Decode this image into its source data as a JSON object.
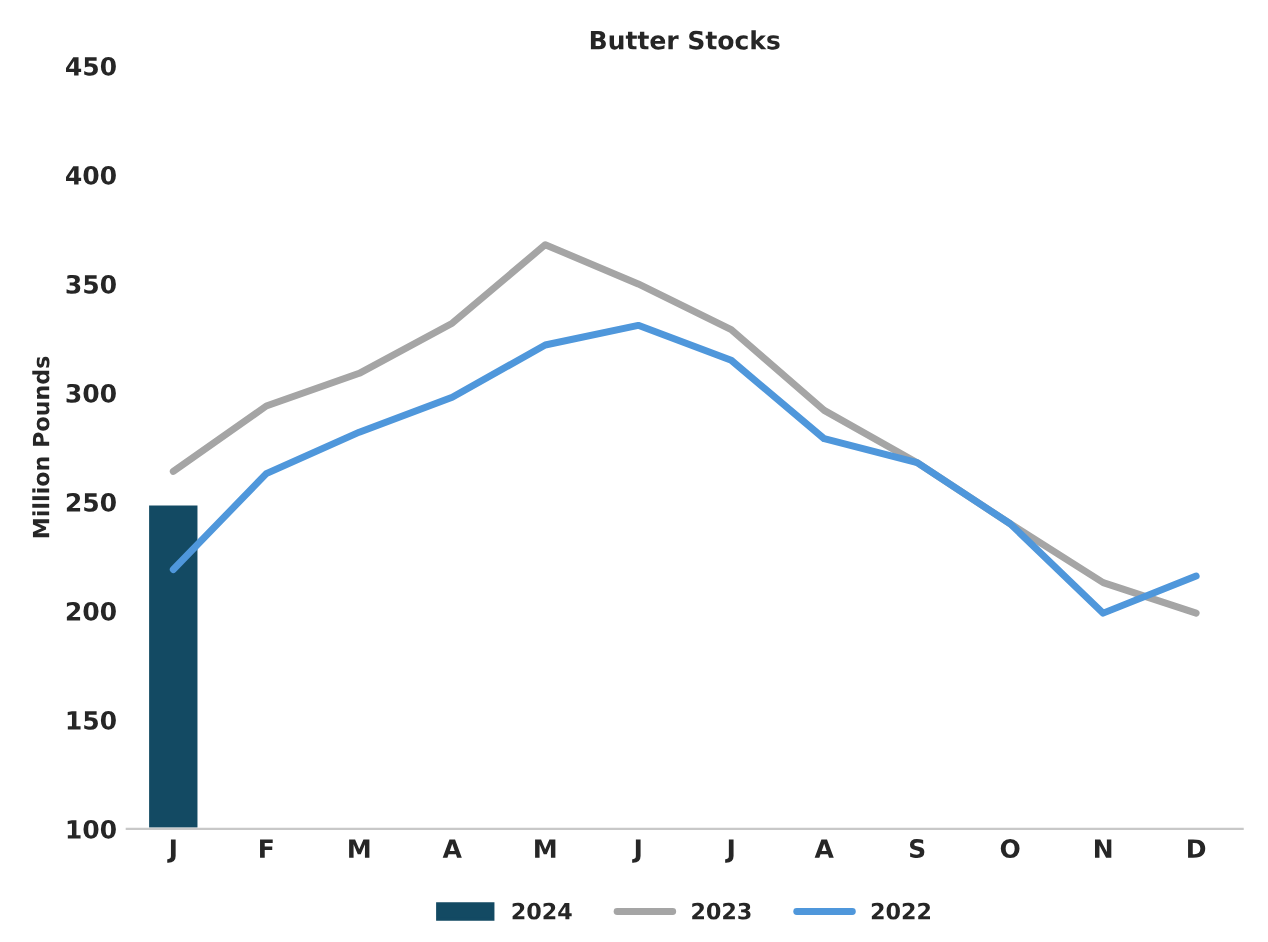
{
  "chart_data": {
    "type": "bar",
    "title": "Butter Stocks",
    "ylabel": "Million Pounds",
    "categories": [
      "J",
      "F",
      "M",
      "A",
      "M",
      "J",
      "J",
      "A",
      "S",
      "O",
      "N",
      "D"
    ],
    "series": [
      {
        "name": "2024",
        "color": "#134a63",
        "values": [
          249,
          null,
          null,
          null,
          null,
          null,
          null,
          null,
          null,
          null,
          null,
          null
        ]
      },
      {
        "name": "2023",
        "type": "line",
        "color": "#a5a5a5",
        "values": [
          264,
          294,
          309,
          332,
          368,
          350,
          329,
          292,
          268,
          240,
          213,
          199
        ]
      },
      {
        "name": "2022",
        "type": "line",
        "color": "#4f97db",
        "values": [
          219,
          263,
          282,
          298,
          322,
          331,
          315,
          279,
          268,
          240,
          199,
          216
        ]
      }
    ],
    "ylim": [
      100,
      450
    ],
    "yticks": [
      100,
      150,
      200,
      250,
      300,
      350,
      400,
      450
    ],
    "grid": false,
    "legend": "bottom"
  }
}
